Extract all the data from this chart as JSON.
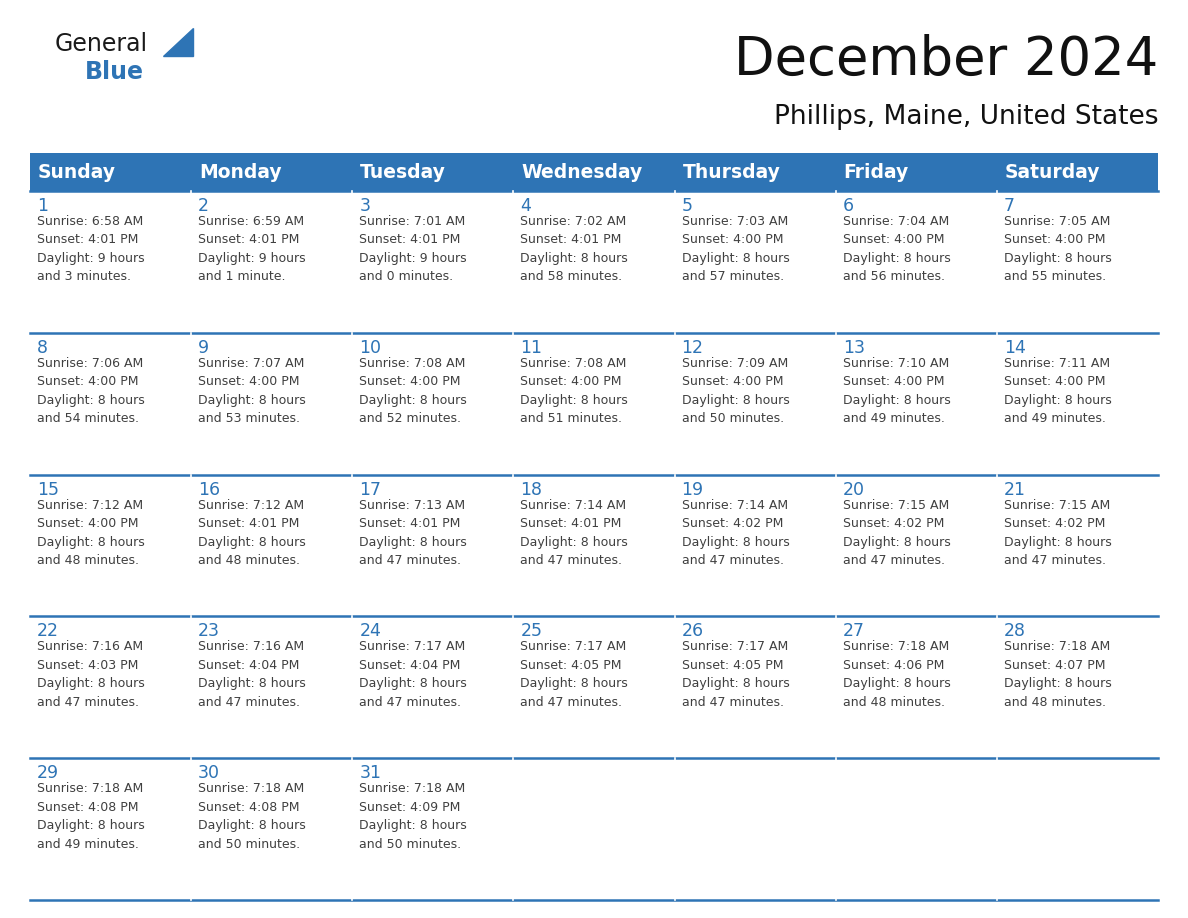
{
  "title": "December 2024",
  "subtitle": "Phillips, Maine, United States",
  "header_color": "#2E74B5",
  "header_text_color": "#FFFFFF",
  "day_names": [
    "Sunday",
    "Monday",
    "Tuesday",
    "Wednesday",
    "Thursday",
    "Friday",
    "Saturday"
  ],
  "background_color": "#FFFFFF",
  "cell_bg_color": "#F2F2F2",
  "empty_cell_bg_color": "#FFFFFF",
  "grid_line_color": "#2E74B5",
  "date_color": "#2E74B5",
  "text_color": "#404040",
  "logo_general_color": "#1A1A1A",
  "logo_blue_color": "#2E74B5",
  "weeks": [
    [
      {
        "day": 1,
        "sunrise": "6:58 AM",
        "sunset": "4:01 PM",
        "daylight": "9 hours\nand 3 minutes."
      },
      {
        "day": 2,
        "sunrise": "6:59 AM",
        "sunset": "4:01 PM",
        "daylight": "9 hours\nand 1 minute."
      },
      {
        "day": 3,
        "sunrise": "7:01 AM",
        "sunset": "4:01 PM",
        "daylight": "9 hours\nand 0 minutes."
      },
      {
        "day": 4,
        "sunrise": "7:02 AM",
        "sunset": "4:01 PM",
        "daylight": "8 hours\nand 58 minutes."
      },
      {
        "day": 5,
        "sunrise": "7:03 AM",
        "sunset": "4:00 PM",
        "daylight": "8 hours\nand 57 minutes."
      },
      {
        "day": 6,
        "sunrise": "7:04 AM",
        "sunset": "4:00 PM",
        "daylight": "8 hours\nand 56 minutes."
      },
      {
        "day": 7,
        "sunrise": "7:05 AM",
        "sunset": "4:00 PM",
        "daylight": "8 hours\nand 55 minutes."
      }
    ],
    [
      {
        "day": 8,
        "sunrise": "7:06 AM",
        "sunset": "4:00 PM",
        "daylight": "8 hours\nand 54 minutes."
      },
      {
        "day": 9,
        "sunrise": "7:07 AM",
        "sunset": "4:00 PM",
        "daylight": "8 hours\nand 53 minutes."
      },
      {
        "day": 10,
        "sunrise": "7:08 AM",
        "sunset": "4:00 PM",
        "daylight": "8 hours\nand 52 minutes."
      },
      {
        "day": 11,
        "sunrise": "7:08 AM",
        "sunset": "4:00 PM",
        "daylight": "8 hours\nand 51 minutes."
      },
      {
        "day": 12,
        "sunrise": "7:09 AM",
        "sunset": "4:00 PM",
        "daylight": "8 hours\nand 50 minutes."
      },
      {
        "day": 13,
        "sunrise": "7:10 AM",
        "sunset": "4:00 PM",
        "daylight": "8 hours\nand 49 minutes."
      },
      {
        "day": 14,
        "sunrise": "7:11 AM",
        "sunset": "4:00 PM",
        "daylight": "8 hours\nand 49 minutes."
      }
    ],
    [
      {
        "day": 15,
        "sunrise": "7:12 AM",
        "sunset": "4:00 PM",
        "daylight": "8 hours\nand 48 minutes."
      },
      {
        "day": 16,
        "sunrise": "7:12 AM",
        "sunset": "4:01 PM",
        "daylight": "8 hours\nand 48 minutes."
      },
      {
        "day": 17,
        "sunrise": "7:13 AM",
        "sunset": "4:01 PM",
        "daylight": "8 hours\nand 47 minutes."
      },
      {
        "day": 18,
        "sunrise": "7:14 AM",
        "sunset": "4:01 PM",
        "daylight": "8 hours\nand 47 minutes."
      },
      {
        "day": 19,
        "sunrise": "7:14 AM",
        "sunset": "4:02 PM",
        "daylight": "8 hours\nand 47 minutes."
      },
      {
        "day": 20,
        "sunrise": "7:15 AM",
        "sunset": "4:02 PM",
        "daylight": "8 hours\nand 47 minutes."
      },
      {
        "day": 21,
        "sunrise": "7:15 AM",
        "sunset": "4:02 PM",
        "daylight": "8 hours\nand 47 minutes."
      }
    ],
    [
      {
        "day": 22,
        "sunrise": "7:16 AM",
        "sunset": "4:03 PM",
        "daylight": "8 hours\nand 47 minutes."
      },
      {
        "day": 23,
        "sunrise": "7:16 AM",
        "sunset": "4:04 PM",
        "daylight": "8 hours\nand 47 minutes."
      },
      {
        "day": 24,
        "sunrise": "7:17 AM",
        "sunset": "4:04 PM",
        "daylight": "8 hours\nand 47 minutes."
      },
      {
        "day": 25,
        "sunrise": "7:17 AM",
        "sunset": "4:05 PM",
        "daylight": "8 hours\nand 47 minutes."
      },
      {
        "day": 26,
        "sunrise": "7:17 AM",
        "sunset": "4:05 PM",
        "daylight": "8 hours\nand 47 minutes."
      },
      {
        "day": 27,
        "sunrise": "7:18 AM",
        "sunset": "4:06 PM",
        "daylight": "8 hours\nand 48 minutes."
      },
      {
        "day": 28,
        "sunrise": "7:18 AM",
        "sunset": "4:07 PM",
        "daylight": "8 hours\nand 48 minutes."
      }
    ],
    [
      {
        "day": 29,
        "sunrise": "7:18 AM",
        "sunset": "4:08 PM",
        "daylight": "8 hours\nand 49 minutes."
      },
      {
        "day": 30,
        "sunrise": "7:18 AM",
        "sunset": "4:08 PM",
        "daylight": "8 hours\nand 50 minutes."
      },
      {
        "day": 31,
        "sunrise": "7:18 AM",
        "sunset": "4:09 PM",
        "daylight": "8 hours\nand 50 minutes."
      },
      null,
      null,
      null,
      null
    ]
  ]
}
